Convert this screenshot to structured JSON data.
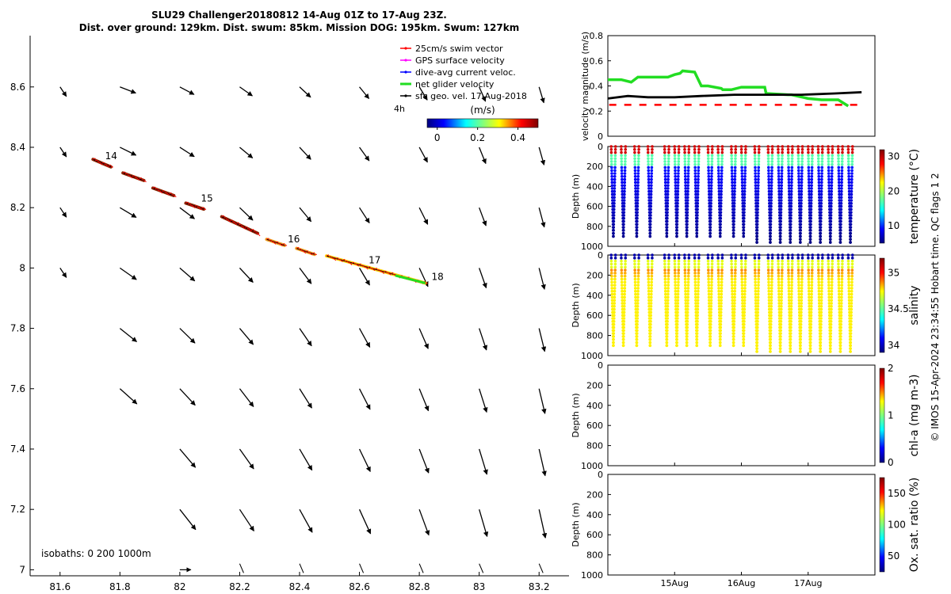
{
  "title_line1": "SLU29 Challenger20180812 14-Aug 01Z to 17-Aug 23Z.",
  "title_line2": "Dist. over ground: 129km. Dist. swum: 85km. Mission DOG: 195km. Swum: 127km",
  "side_note": "© IMOS 15-Apr-2024 23:34:55 Hobart time. QC flags 1  2",
  "colors": {
    "swim": "#ff0000",
    "gps": "#ff00ff",
    "dive": "#0000ff",
    "net": "#22dd22",
    "sfc": "#000000"
  },
  "chart_data": [
    {
      "type": "scatter",
      "name": "map",
      "xlim": [
        81.5,
        83.3
      ],
      "ylim": [
        6.98,
        8.77
      ],
      "xticks": [
        81.6,
        81.8,
        82,
        82.2,
        82.4,
        82.6,
        82.8,
        83,
        83.2
      ],
      "yticks": [
        7,
        7.2,
        7.4,
        7.6,
        7.8,
        8,
        8.2,
        8.4,
        8.6
      ],
      "legend": {
        "placement": "top-right",
        "entries": [
          "25cm/s swim vector",
          "GPS surface velocity",
          "dive-avg current veloc.",
          "net glider velocity",
          "sfc geo. vel. 17-Aug-2018"
        ]
      },
      "legend_extra": "4h",
      "colorbar": {
        "label": "(m/s)",
        "ticks": [
          "0",
          "0.2",
          "0.4"
        ],
        "range": [
          -0.05,
          0.5
        ]
      },
      "track_segments": [
        {
          "from": [
            81.71,
            8.36
          ],
          "to": [
            81.77,
            8.335
          ]
        },
        {
          "from": [
            81.81,
            8.315
          ],
          "to": [
            81.88,
            8.29
          ]
        },
        {
          "from": [
            81.91,
            8.265
          ],
          "to": [
            81.98,
            8.24
          ]
        },
        {
          "from": [
            82.02,
            8.215
          ],
          "to": [
            82.08,
            8.195
          ]
        },
        {
          "from": [
            82.14,
            8.17
          ],
          "to": [
            82.26,
            8.115
          ]
        },
        {
          "from": [
            82.29,
            8.095
          ],
          "to": [
            82.35,
            8.075
          ]
        },
        {
          "from": [
            82.39,
            8.065
          ],
          "to": [
            82.45,
            8.045
          ]
        },
        {
          "from": [
            82.49,
            8.04
          ],
          "to": [
            82.82,
            7.95
          ]
        }
      ],
      "day_labels": [
        {
          "text": "14",
          "x": 81.74,
          "y": 8.355
        },
        {
          "text": "15",
          "x": 82.06,
          "y": 8.215
        },
        {
          "text": "16",
          "x": 82.35,
          "y": 8.08
        },
        {
          "text": "17",
          "x": 82.62,
          "y": 8.01
        },
        {
          "text": "18",
          "x": 82.83,
          "y": 7.955
        }
      ],
      "isobaths_text": "isobaths: 0    200  1000m"
    },
    {
      "type": "line",
      "name": "velocity",
      "ylabel": "velocity magnitude (m/s)",
      "xlim": [
        0,
        4
      ],
      "ylim": [
        0,
        0.8
      ],
      "yticks": [
        "0",
        "0.2",
        "0.4",
        "0.6",
        "0.8"
      ],
      "series": [
        {
          "name": "net glider velocity",
          "color": "#22dd22",
          "x": [
            0,
            0.2,
            0.35,
            0.45,
            0.9,
            1.0,
            1.08,
            1.12,
            1.3,
            1.4,
            1.5,
            1.7,
            1.72,
            1.85,
            2.0,
            2.07,
            2.35,
            2.37,
            2.7,
            2.75,
            3.0,
            3.2,
            3.45,
            3.6
          ],
          "y": [
            0.45,
            0.45,
            0.43,
            0.47,
            0.47,
            0.49,
            0.5,
            0.52,
            0.51,
            0.4,
            0.4,
            0.38,
            0.37,
            0.37,
            0.39,
            0.39,
            0.39,
            0.34,
            0.33,
            0.33,
            0.3,
            0.29,
            0.29,
            0.24
          ]
        },
        {
          "name": "sfc geo. vel.",
          "color": "#000000",
          "x": [
            0,
            0.3,
            0.6,
            1.0,
            1.4,
            1.9,
            2.4,
            2.9,
            3.4,
            3.8
          ],
          "y": [
            0.3,
            0.32,
            0.31,
            0.31,
            0.32,
            0.33,
            0.33,
            0.33,
            0.34,
            0.35
          ]
        },
        {
          "name": "25cm/s swim vector",
          "color": "#ff0000",
          "x": [
            0,
            3.8
          ],
          "y": [
            0.25,
            0.25
          ]
        }
      ]
    },
    {
      "type": "heatmap",
      "name": "temperature",
      "ylabel": "Depth (m)",
      "clabel": "temperature (°C)",
      "ylim": [
        1000,
        0
      ],
      "yticks": [
        "0",
        "200",
        "400",
        "600",
        "800",
        "1000"
      ],
      "cticks": [
        "10",
        "20",
        "30"
      ],
      "crange": [
        5,
        32
      ],
      "dives": 22,
      "max_depth": 900
    },
    {
      "type": "heatmap",
      "name": "salinity",
      "ylabel": "Depth (m)",
      "clabel": "salinity",
      "ylim": [
        1000,
        0
      ],
      "yticks": [
        "0",
        "200",
        "400",
        "600",
        "800",
        "1000"
      ],
      "cticks": [
        "34",
        "34.5",
        "35"
      ],
      "crange": [
        33.9,
        35.2
      ],
      "dives": 22,
      "max_depth": 900
    },
    {
      "type": "heatmap",
      "name": "chl-a",
      "ylabel": "Depth (m)",
      "clabel": "chl-a (mg m-3)",
      "ylim": [
        1000,
        0
      ],
      "yticks": [
        "0",
        "200",
        "400",
        "600",
        "800",
        "1000"
      ],
      "cticks": [
        "0",
        "1",
        "2"
      ],
      "crange": [
        0,
        2
      ]
    },
    {
      "type": "heatmap",
      "name": "oxygen",
      "ylabel": "Depth (m)",
      "clabel": "Ox. sat. ratio (%)",
      "ylim": [
        1000,
        0
      ],
      "yticks": [
        "0",
        "200",
        "400",
        "600",
        "800",
        "1000"
      ],
      "cticks": [
        "50",
        "100",
        "150"
      ],
      "crange": [
        25,
        175
      ],
      "xticks": [
        "15Aug",
        "16Aug",
        "17Aug"
      ]
    }
  ]
}
